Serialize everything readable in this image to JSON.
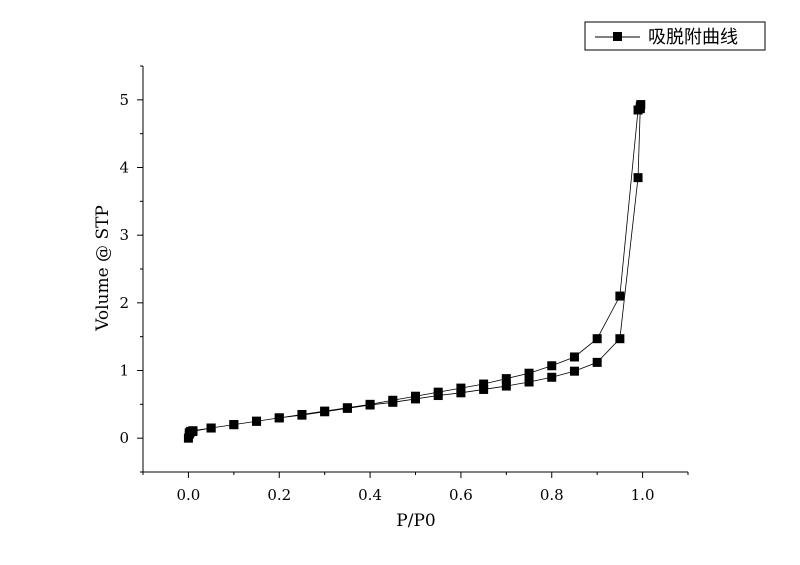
{
  "chart_data": {
    "type": "line",
    "title": "",
    "xlabel": "P/P0",
    "ylabel": "Volume @ STP",
    "xlim": [
      -0.1,
      1.1
    ],
    "ylim": [
      -0.5,
      5.5
    ],
    "xticks": [
      "0.0",
      "0.2",
      "0.4",
      "0.6",
      "0.8",
      "1.0"
    ],
    "yticks": [
      "0",
      "1",
      "2",
      "3",
      "4",
      "5"
    ],
    "grid": false,
    "legend_position": "top-right",
    "marker": "square",
    "series": [
      {
        "name": "吸脱附曲线",
        "x": [
          0.0,
          0.002,
          0.005,
          0.01,
          0.05,
          0.1,
          0.15,
          0.2,
          0.25,
          0.3,
          0.35,
          0.4,
          0.45,
          0.5,
          0.55,
          0.6,
          0.65,
          0.7,
          0.75,
          0.8,
          0.85,
          0.9,
          0.95,
          0.99,
          0.995,
          0.996,
          0.995,
          0.99,
          0.95,
          0.9,
          0.85,
          0.8,
          0.75,
          0.7,
          0.65,
          0.6,
          0.55,
          0.5,
          0.45,
          0.4,
          0.35,
          0.3,
          0.25,
          0.2,
          0.15,
          0.1,
          0.05,
          0.01,
          0.005,
          0.002
        ],
        "y": [
          0.0,
          0.06,
          0.09,
          0.1,
          0.15,
          0.2,
          0.25,
          0.3,
          0.34,
          0.39,
          0.44,
          0.49,
          0.53,
          0.58,
          0.63,
          0.67,
          0.72,
          0.77,
          0.83,
          0.9,
          0.99,
          1.12,
          1.47,
          3.85,
          4.9,
          4.93,
          4.87,
          4.85,
          2.1,
          1.47,
          1.2,
          1.07,
          0.96,
          0.88,
          0.8,
          0.74,
          0.68,
          0.62,
          0.56,
          0.5,
          0.45,
          0.4,
          0.35,
          0.3,
          0.25,
          0.2,
          0.15,
          0.11,
          0.1,
          0.08
        ]
      }
    ]
  }
}
